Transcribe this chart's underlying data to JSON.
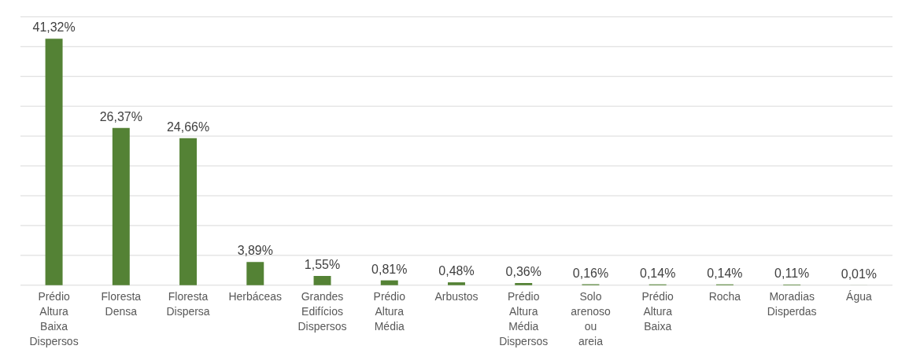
{
  "chart_data": {
    "type": "bar",
    "categories": [
      "Prédio Altura Baixa Dispersos",
      "Floresta Densa",
      "Floresta Dispersa",
      "Herbáceas",
      "Grandes Edifícios Dispersos",
      "Prédio Altura Média",
      "Arbustos",
      "Prédio Altura Média Dispersos",
      "Solo arenoso ou areia",
      "Prédio Altura Baixa",
      "Rocha",
      "Moradias Disperdas",
      "Água"
    ],
    "values": [
      41.32,
      26.37,
      24.66,
      3.89,
      1.55,
      0.81,
      0.48,
      0.36,
      0.16,
      0.14,
      0.14,
      0.11,
      0.01
    ],
    "value_labels": [
      "41,32%",
      "26,37%",
      "24,66%",
      "3,89%",
      "1,55%",
      "0,81%",
      "0,48%",
      "0,36%",
      "0,16%",
      "0,14%",
      "0,14%",
      "0,11%",
      "0,01%"
    ],
    "color": "#548235",
    "ylim": [
      0,
      45
    ],
    "yticks": [
      {
        "value": 0,
        "label": null
      },
      {
        "value": 5,
        "label": null
      },
      {
        "value": 10,
        "label": null
      },
      {
        "value": 15,
        "label": null
      },
      {
        "value": 20,
        "label": null
      },
      {
        "value": 25,
        "label": null
      },
      {
        "value": 30,
        "label": null
      },
      {
        "value": 35,
        "label": null
      },
      {
        "value": 40,
        "label": null
      },
      {
        "value": 45,
        "label": null
      }
    ],
    "grid": "y",
    "tick_labels": "x"
  }
}
